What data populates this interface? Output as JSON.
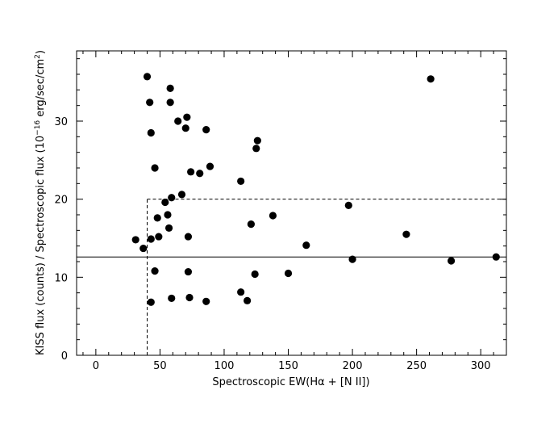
{
  "chart_data": {
    "type": "scatter",
    "xlabel": "Spectroscopic EW(Hα + [N II])",
    "ylabel_main": "KISS flux (counts) / Spectroscopic flux (10",
    "ylabel_exp": "−16",
    "ylabel_units": " erg/sec/cm",
    "ylabel_sq": "2",
    "ylabel_close": ")",
    "xlim": [
      -15,
      320
    ],
    "ylim": [
      0,
      39
    ],
    "xticks": [
      0,
      50,
      100,
      150,
      200,
      250,
      300
    ],
    "yticks": [
      0,
      10,
      20,
      30
    ],
    "x_tick_labels": [
      "0",
      "50",
      "100",
      "150",
      "200",
      "250",
      "300"
    ],
    "y_tick_labels": [
      "0",
      "10",
      "20",
      "30"
    ],
    "grid": false,
    "reference_lines": [
      {
        "kind": "horizontal",
        "style": "solid",
        "y": 12.6
      },
      {
        "kind": "vertical",
        "style": "dashed",
        "x": 40,
        "y_from": 0,
        "y_to": 20
      },
      {
        "kind": "horizontal",
        "style": "dashed",
        "y": 20,
        "x_from": 40,
        "x_to": 320
      }
    ],
    "points": [
      {
        "x": 40,
        "y": 35.7
      },
      {
        "x": 42,
        "y": 32.4
      },
      {
        "x": 58,
        "y": 34.2
      },
      {
        "x": 58,
        "y": 32.4
      },
      {
        "x": 43,
        "y": 28.5
      },
      {
        "x": 64,
        "y": 30.0
      },
      {
        "x": 71,
        "y": 30.5
      },
      {
        "x": 70,
        "y": 29.1
      },
      {
        "x": 86,
        "y": 28.9
      },
      {
        "x": 126,
        "y": 27.5
      },
      {
        "x": 125,
        "y": 26.5
      },
      {
        "x": 46,
        "y": 24.0
      },
      {
        "x": 74,
        "y": 23.5
      },
      {
        "x": 81,
        "y": 23.3
      },
      {
        "x": 89,
        "y": 24.2
      },
      {
        "x": 113,
        "y": 22.3
      },
      {
        "x": 67,
        "y": 20.6
      },
      {
        "x": 59,
        "y": 20.2
      },
      {
        "x": 54,
        "y": 19.6
      },
      {
        "x": 56,
        "y": 18.0
      },
      {
        "x": 48,
        "y": 17.6
      },
      {
        "x": 57,
        "y": 16.3
      },
      {
        "x": 121,
        "y": 16.8
      },
      {
        "x": 138,
        "y": 17.9
      },
      {
        "x": 197,
        "y": 19.2
      },
      {
        "x": 261,
        "y": 35.4
      },
      {
        "x": 31,
        "y": 14.8
      },
      {
        "x": 37,
        "y": 13.7
      },
      {
        "x": 43,
        "y": 14.9
      },
      {
        "x": 49,
        "y": 15.2
      },
      {
        "x": 72,
        "y": 15.2
      },
      {
        "x": 164,
        "y": 14.1
      },
      {
        "x": 242,
        "y": 15.5
      },
      {
        "x": 200,
        "y": 12.3
      },
      {
        "x": 277,
        "y": 12.1
      },
      {
        "x": 312,
        "y": 12.6
      },
      {
        "x": 46,
        "y": 10.8
      },
      {
        "x": 72,
        "y": 10.7
      },
      {
        "x": 124,
        "y": 10.4
      },
      {
        "x": 150,
        "y": 10.5
      },
      {
        "x": 113,
        "y": 8.1
      },
      {
        "x": 59,
        "y": 7.3
      },
      {
        "x": 73,
        "y": 7.4
      },
      {
        "x": 43,
        "y": 6.8
      },
      {
        "x": 86,
        "y": 6.9
      },
      {
        "x": 118,
        "y": 7.0
      }
    ]
  }
}
